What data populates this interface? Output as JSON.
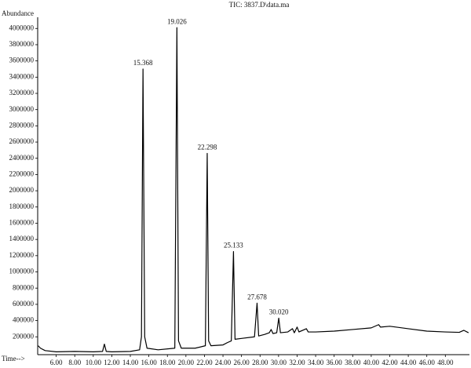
{
  "chart_data": {
    "type": "line",
    "title": "TIC: 3837.D\\data.ma",
    "y_label": "Abundance",
    "x_label": "Time-->",
    "color": "#000000",
    "grid": false,
    "xlim": [
      4.0,
      50.6
    ],
    "ylim": [
      -20000,
      4080000
    ],
    "xticks": [
      {
        "value": 6,
        "label": "6.00"
      },
      {
        "value": 8,
        "label": "8.00"
      },
      {
        "value": 10,
        "label": "10.00"
      },
      {
        "value": 12,
        "label": "12.00"
      },
      {
        "value": 14,
        "label": "14.00"
      },
      {
        "value": 16,
        "label": "16.00"
      },
      {
        "value": 18,
        "label": "18.00"
      },
      {
        "value": 20,
        "label": "20.00"
      },
      {
        "value": 22,
        "label": "22.00"
      },
      {
        "value": 24,
        "label": "24.00"
      },
      {
        "value": 26,
        "label": "26.00"
      },
      {
        "value": 28,
        "label": "28.00"
      },
      {
        "value": 30,
        "label": "30.00"
      },
      {
        "value": 32,
        "label": "32.00"
      },
      {
        "value": 34,
        "label": "34.00"
      },
      {
        "value": 36,
        "label": "36.00"
      },
      {
        "value": 38,
        "label": "38.00"
      },
      {
        "value": 40,
        "label": "40.00"
      },
      {
        "value": 42,
        "label": "42.00"
      },
      {
        "value": 44,
        "label": "44.00"
      },
      {
        "value": 46,
        "label": "46.00"
      },
      {
        "value": 48,
        "label": "48.00"
      }
    ],
    "yticks": [
      200000,
      400000,
      600000,
      800000,
      1000000,
      1200000,
      1400000,
      1600000,
      1800000,
      2000000,
      2200000,
      2400000,
      2600000,
      2800000,
      3000000,
      3200000,
      3400000,
      3600000,
      3800000,
      4000000
    ],
    "x": [
      4.05,
      4.3,
      4.8,
      6,
      8,
      10,
      11.0,
      11.2,
      11.4,
      12,
      14,
      15.0,
      15.2,
      15.368,
      15.55,
      15.8,
      17,
      18.8,
      19.026,
      19.2,
      19.5,
      21,
      22.1,
      22.298,
      22.45,
      22.7,
      24,
      24.5,
      24.9,
      25.133,
      25.3,
      26,
      27.4,
      27.678,
      27.85,
      28.5,
      29,
      29.2,
      29.4,
      29.8,
      30.02,
      30.2,
      31,
      31.5,
      31.7,
      32,
      32.2,
      33,
      33.2,
      34,
      36,
      38,
      40,
      40.8,
      41,
      42,
      44,
      46,
      48,
      49.5,
      50,
      50.5
    ],
    "values": [
      90000,
      60000,
      30000,
      15000,
      20000,
      15000,
      20000,
      110000,
      20000,
      15000,
      20000,
      40000,
      200000,
      3500000,
      200000,
      60000,
      40000,
      60000,
      4010000,
      150000,
      60000,
      60000,
      90000,
      2460000,
      150000,
      90000,
      100000,
      130000,
      150000,
      1250000,
      170000,
      180000,
      200000,
      615000,
      210000,
      230000,
      250000,
      290000,
      240000,
      250000,
      430000,
      250000,
      260000,
      300000,
      250000,
      320000,
      260000,
      300000,
      260000,
      260000,
      270000,
      290000,
      310000,
      350000,
      320000,
      330000,
      300000,
      270000,
      260000,
      255000,
      280000,
      250000
    ],
    "annotations": [
      "15.368",
      "19.026",
      "22.298",
      "25.133",
      "27.678",
      "30.020"
    ]
  }
}
